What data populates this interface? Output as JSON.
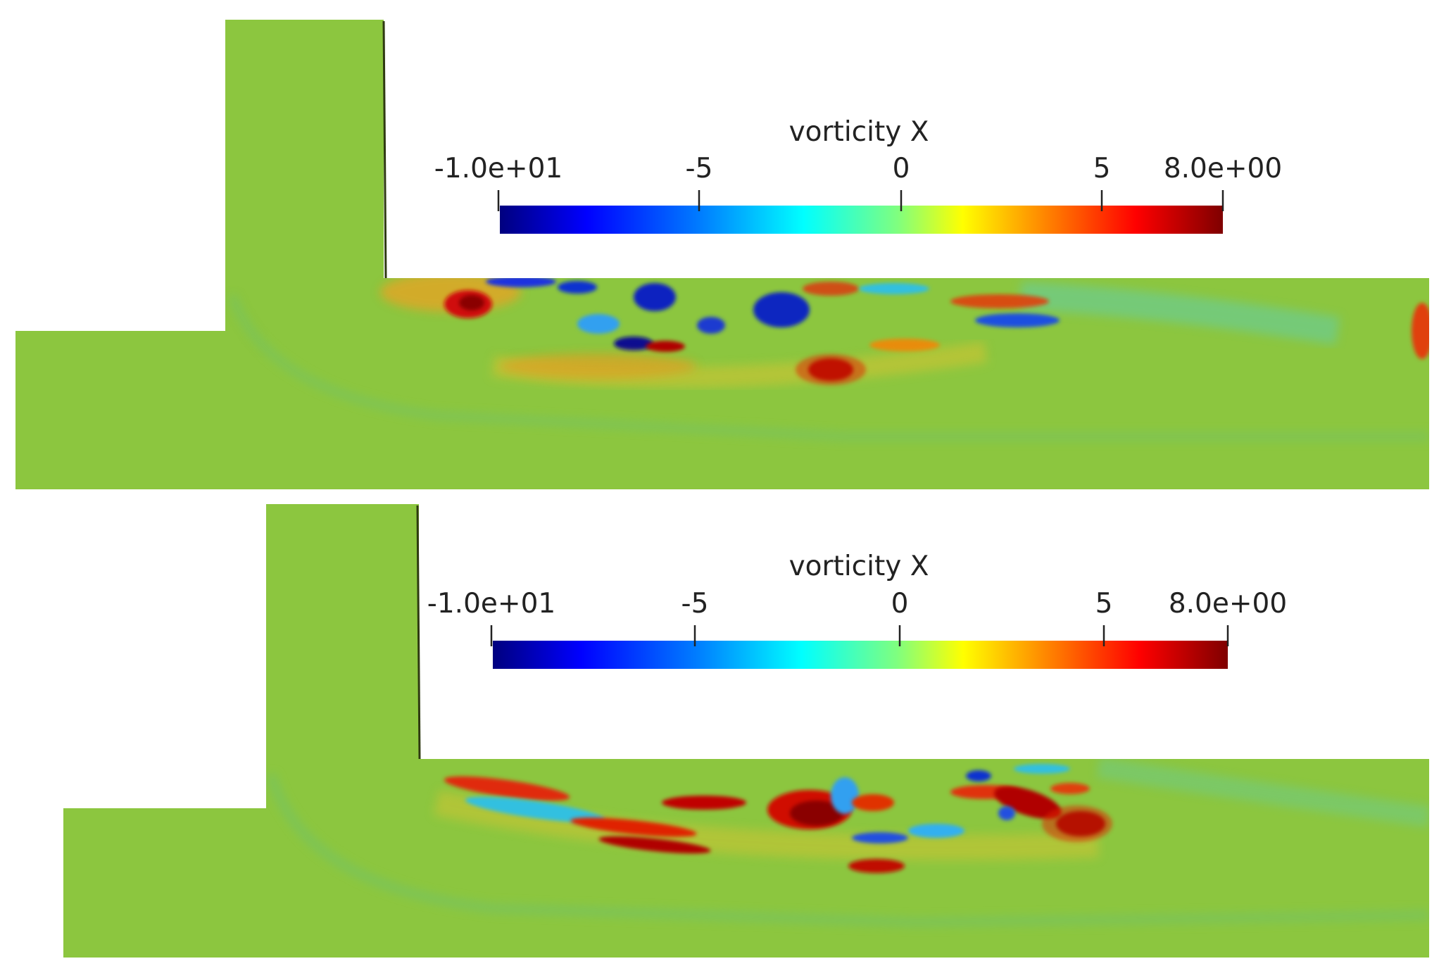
{
  "panels": [
    {
      "colorbar": {
        "title": "vorticity X",
        "ticks": [
          "-1.0e+01",
          "-5",
          "0",
          "5",
          "8.0e+00"
        ],
        "tick_values": [
          -10,
          -5,
          0,
          5,
          8
        ],
        "range": [
          -10,
          8
        ]
      }
    },
    {
      "colorbar": {
        "title": "vorticity X",
        "ticks": [
          "-1.0e+01",
          "-5",
          "0",
          "5",
          "8.0e+00"
        ],
        "tick_values": [
          -10,
          -5,
          0,
          5,
          8
        ],
        "range": [
          -10,
          8
        ]
      }
    }
  ],
  "colormap": [
    "#00007f",
    "#0000ff",
    "#007fff",
    "#00ffff",
    "#7fff7f",
    "#ffff00",
    "#ff7f00",
    "#ff0000",
    "#7f0000"
  ],
  "colors": {
    "background": "#ffffff",
    "domain_fill": "#8cc63f",
    "domain_fill_dark": "#7fbf3a"
  }
}
